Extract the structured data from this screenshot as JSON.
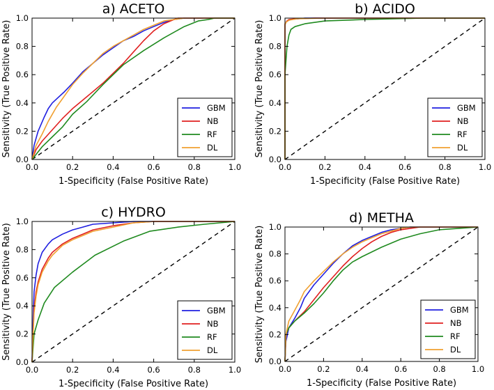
{
  "figure": {
    "series_colors": {
      "GBM": "#1f1fe0",
      "NB": "#e01f1f",
      "RF": "#1f8a1f",
      "DL": "#f0a030"
    },
    "diagonal_style": "dashed-black"
  },
  "chart_data": [
    {
      "type": "line",
      "title": "a) ACETO",
      "xlabel": "1-Specificity (False Positive Rate)",
      "ylabel": "Sensitivity (True Positive Rate)",
      "xlim": [
        0,
        1
      ],
      "ylim": [
        0,
        1
      ],
      "xticks": [
        "0.0",
        "0.2",
        "0.4",
        "0.6",
        "0.8",
        "1.0"
      ],
      "yticks": [
        "0.0",
        "0.2",
        "0.4",
        "0.6",
        "0.8",
        "1.0"
      ],
      "legend": {
        "position": "bottom-right",
        "entries": [
          "GBM",
          "NB",
          "RF",
          "DL"
        ]
      },
      "series": [
        {
          "name": "GBM",
          "x": [
            0,
            0.01,
            0.03,
            0.06,
            0.08,
            0.1,
            0.13,
            0.16,
            0.2,
            0.25,
            0.3,
            0.35,
            0.4,
            0.45,
            0.5,
            0.55,
            0.6,
            0.65,
            0.7,
            0.75,
            1.0
          ],
          "y": [
            0,
            0.1,
            0.2,
            0.3,
            0.36,
            0.4,
            0.44,
            0.48,
            0.54,
            0.62,
            0.68,
            0.74,
            0.79,
            0.84,
            0.87,
            0.91,
            0.94,
            0.97,
            0.99,
            1.0,
            1.0
          ]
        },
        {
          "name": "NB",
          "x": [
            0,
            0.02,
            0.05,
            0.1,
            0.15,
            0.2,
            0.25,
            0.3,
            0.35,
            0.4,
            0.45,
            0.5,
            0.55,
            0.6,
            0.65,
            0.7,
            0.72,
            1.0
          ],
          "y": [
            0,
            0.07,
            0.13,
            0.21,
            0.29,
            0.36,
            0.42,
            0.48,
            0.54,
            0.61,
            0.68,
            0.76,
            0.84,
            0.91,
            0.96,
            0.99,
            1.0,
            1.0
          ]
        },
        {
          "name": "RF",
          "x": [
            0,
            0.05,
            0.1,
            0.15,
            0.2,
            0.27,
            0.35,
            0.45,
            0.55,
            0.65,
            0.75,
            0.82,
            0.87,
            0.9,
            1.0
          ],
          "y": [
            0,
            0.09,
            0.16,
            0.23,
            0.32,
            0.41,
            0.53,
            0.67,
            0.77,
            0.86,
            0.94,
            0.98,
            0.99,
            1.0,
            1.0
          ]
        },
        {
          "name": "DL",
          "x": [
            0,
            0.02,
            0.05,
            0.08,
            0.12,
            0.16,
            0.2,
            0.25,
            0.3,
            0.35,
            0.4,
            0.45,
            0.5,
            0.55,
            0.6,
            0.65,
            0.7,
            0.75,
            1.0
          ],
          "y": [
            0,
            0.1,
            0.18,
            0.27,
            0.37,
            0.45,
            0.53,
            0.61,
            0.68,
            0.75,
            0.8,
            0.84,
            0.88,
            0.92,
            0.95,
            0.98,
            0.99,
            1.0,
            1.0
          ]
        }
      ]
    },
    {
      "type": "line",
      "title": "b) ACIDO",
      "xlabel": "1-Specificity (False Positive Rate)",
      "ylabel": "Sensitivity (True Positive Rate)",
      "xlim": [
        0,
        1
      ],
      "ylim": [
        0,
        1
      ],
      "xticks": [
        "0.0",
        "0.2",
        "0.4",
        "0.6",
        "0.8",
        "1.0"
      ],
      "yticks": [
        "0.0",
        "0.2",
        "0.4",
        "0.6",
        "0.8",
        "1.0"
      ],
      "legend": {
        "position": "bottom-right",
        "entries": [
          "GBM",
          "NB",
          "RF",
          "DL"
        ]
      },
      "series": [
        {
          "name": "GBM",
          "x": [
            0,
            0.0,
            0.005,
            0.01,
            0.03,
            0.1,
            0.3,
            1.0
          ],
          "y": [
            0,
            0.95,
            0.97,
            0.98,
            0.99,
            1.0,
            1.0,
            1.0
          ]
        },
        {
          "name": "NB",
          "x": [
            0,
            0.0,
            0.01,
            0.02,
            0.05,
            0.15,
            1.0
          ],
          "y": [
            0,
            0.96,
            0.98,
            0.99,
            0.995,
            1.0,
            1.0
          ]
        },
        {
          "name": "RF",
          "x": [
            0,
            0.0,
            0.01,
            0.02,
            0.03,
            0.05,
            0.1,
            0.2,
            0.4,
            0.7,
            1.0
          ],
          "y": [
            0,
            0.6,
            0.8,
            0.88,
            0.92,
            0.94,
            0.96,
            0.98,
            0.99,
            1.0,
            1.0
          ]
        },
        {
          "name": "DL",
          "x": [
            0,
            0.0,
            0.005,
            0.02,
            0.06,
            0.2,
            1.0
          ],
          "y": [
            0,
            0.95,
            0.97,
            0.985,
            0.995,
            1.0,
            1.0
          ]
        }
      ]
    },
    {
      "type": "line",
      "title": "c) HYDRO",
      "xlabel": "1-Specificity (False Positive Rate)",
      "ylabel": "Sensitivity (True Positive Rate)",
      "xlim": [
        0,
        1
      ],
      "ylim": [
        0,
        1
      ],
      "xticks": [
        "0.0",
        "0.2",
        "0.4",
        "0.6",
        "0.8",
        "1.0"
      ],
      "yticks": [
        "0.0",
        "0.2",
        "0.4",
        "0.6",
        "0.8",
        "1.0"
      ],
      "legend": {
        "position": "bottom-right",
        "entries": [
          "GBM",
          "NB",
          "RF",
          "DL"
        ]
      },
      "series": [
        {
          "name": "GBM",
          "x": [
            0,
            0.005,
            0.01,
            0.02,
            0.03,
            0.05,
            0.08,
            0.1,
            0.15,
            0.2,
            0.25,
            0.3,
            0.4,
            0.5,
            0.6,
            1.0
          ],
          "y": [
            0,
            0.3,
            0.5,
            0.62,
            0.7,
            0.78,
            0.84,
            0.87,
            0.91,
            0.94,
            0.96,
            0.98,
            0.99,
            1.0,
            1.0,
            1.0
          ]
        },
        {
          "name": "NB",
          "x": [
            0,
            0.005,
            0.01,
            0.02,
            0.03,
            0.05,
            0.08,
            0.1,
            0.15,
            0.2,
            0.25,
            0.3,
            0.4,
            0.5,
            0.6,
            0.7,
            1.0
          ],
          "y": [
            0,
            0.2,
            0.38,
            0.5,
            0.57,
            0.66,
            0.74,
            0.78,
            0.84,
            0.88,
            0.91,
            0.94,
            0.97,
            0.99,
            1.0,
            1.0,
            1.0
          ]
        },
        {
          "name": "RF",
          "x": [
            0,
            0.01,
            0.03,
            0.06,
            0.11,
            0.2,
            0.31,
            0.45,
            0.58,
            0.72,
            0.85,
            1.0
          ],
          "y": [
            0,
            0.2,
            0.3,
            0.42,
            0.53,
            0.64,
            0.76,
            0.86,
            0.93,
            0.96,
            0.98,
            1.0
          ]
        },
        {
          "name": "DL",
          "x": [
            0,
            0.005,
            0.01,
            0.02,
            0.03,
            0.05,
            0.08,
            0.1,
            0.15,
            0.2,
            0.25,
            0.3,
            0.4,
            0.5,
            0.6,
            0.7,
            1.0
          ],
          "y": [
            0,
            0.2,
            0.35,
            0.47,
            0.55,
            0.64,
            0.72,
            0.76,
            0.83,
            0.87,
            0.9,
            0.93,
            0.96,
            0.99,
            1.0,
            1.0,
            1.0
          ]
        }
      ]
    },
    {
      "type": "line",
      "title": "d) METHA",
      "xlabel": "1-Specificity (False Positive Rate)",
      "ylabel": "Sensitivity (True Positive Rate)",
      "xlim": [
        0,
        1
      ],
      "ylim": [
        0,
        1
      ],
      "xticks": [
        "0.0",
        "0.2",
        "0.4",
        "0.6",
        "0.8",
        "1.0"
      ],
      "yticks": [
        "0.0",
        "0.2",
        "0.4",
        "0.6",
        "0.8",
        "1.0"
      ],
      "legend": {
        "position": "bottom-right",
        "entries": [
          "GBM",
          "NB",
          "RF",
          "DL"
        ]
      },
      "series": [
        {
          "name": "GBM",
          "x": [
            0,
            0.005,
            0.02,
            0.05,
            0.08,
            0.1,
            0.15,
            0.2,
            0.25,
            0.3,
            0.35,
            0.4,
            0.45,
            0.5,
            0.55,
            0.6,
            0.65,
            0.7,
            1.0
          ],
          "y": [
            0,
            0.15,
            0.25,
            0.32,
            0.4,
            0.47,
            0.57,
            0.65,
            0.73,
            0.8,
            0.86,
            0.9,
            0.93,
            0.96,
            0.98,
            0.99,
            1.0,
            1.0,
            1.0
          ]
        },
        {
          "name": "NB",
          "x": [
            0,
            0.005,
            0.02,
            0.05,
            0.1,
            0.15,
            0.2,
            0.25,
            0.3,
            0.35,
            0.4,
            0.45,
            0.5,
            0.55,
            0.6,
            0.65,
            0.7,
            1.0
          ],
          "y": [
            0,
            0.2,
            0.25,
            0.3,
            0.37,
            0.46,
            0.55,
            0.63,
            0.71,
            0.78,
            0.84,
            0.89,
            0.93,
            0.96,
            0.98,
            0.99,
            1.0,
            1.0
          ]
        },
        {
          "name": "RF",
          "x": [
            0,
            0.005,
            0.02,
            0.05,
            0.1,
            0.15,
            0.2,
            0.25,
            0.3,
            0.35,
            0.4,
            0.5,
            0.6,
            0.7,
            0.8,
            0.9,
            1.0
          ],
          "y": [
            0,
            0.2,
            0.25,
            0.3,
            0.36,
            0.43,
            0.51,
            0.6,
            0.68,
            0.74,
            0.78,
            0.85,
            0.91,
            0.95,
            0.98,
            0.99,
            1.0
          ]
        },
        {
          "name": "DL",
          "x": [
            0,
            0.005,
            0.02,
            0.05,
            0.08,
            0.1,
            0.15,
            0.2,
            0.25,
            0.3,
            0.35,
            0.4,
            0.45,
            0.5,
            0.55,
            0.6,
            0.65,
            0.7,
            1.0
          ],
          "y": [
            0,
            0.2,
            0.3,
            0.38,
            0.46,
            0.52,
            0.6,
            0.67,
            0.74,
            0.8,
            0.85,
            0.89,
            0.92,
            0.95,
            0.97,
            0.99,
            1.0,
            1.0,
            1.0
          ]
        }
      ]
    }
  ]
}
